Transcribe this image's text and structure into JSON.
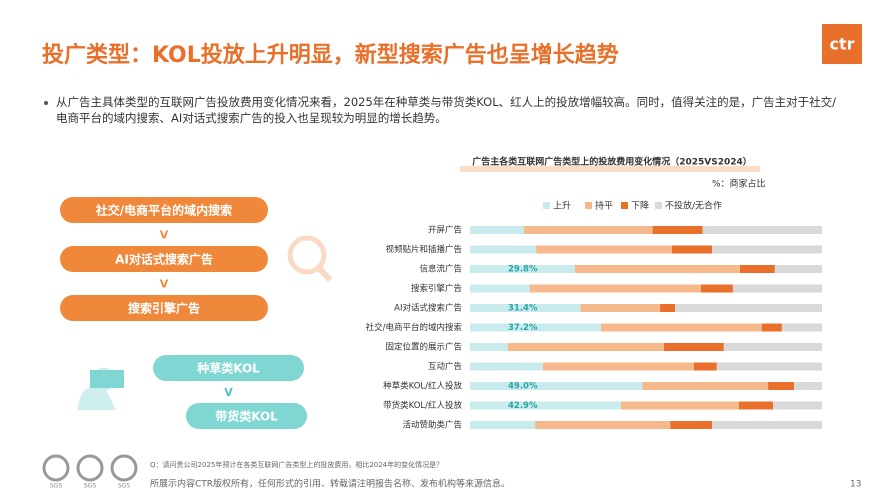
{
  "header": {
    "title": "投广类型：KOL投放上升明显，新型搜索广告也呈增长趋势"
  },
  "logo": "ctr",
  "bullet": "从广告主具体类型的互联网广告投放费用变化情况来看，2025年在种草类与带货类KOL、红人上的投放增幅较高。同时，值得关注的是，广告主对于社交/电商平台的域内搜索、AI对话式搜索广告的投入也呈现较为明显的增长趋势。",
  "pills": {
    "search": [
      "社交/电商平台的域内搜索",
      "V",
      "AI对话式搜索广告",
      "V",
      "搜索引擎广告"
    ],
    "kol": [
      "种草类KOL",
      "V",
      "带货类KOL"
    ]
  },
  "chart_data": {
    "type": "stacked-bar-horizontal",
    "title": "广告主各类互联网广告类型上的投放费用变化情况（2025VS2024）",
    "note": "%：商家占比",
    "categories": [
      "开屏广告",
      "视频贴片和插播广告",
      "信息流广告",
      "搜索引擎广告",
      "AI对话式搜索广告",
      "社交/电商平台的域内搜索",
      "固定位置的展示广告",
      "互动广告",
      "种草类KOL/红人投放",
      "带货类KOL/红人投放",
      "活动赞助类广告"
    ],
    "xlim": [
      0,
      100
    ],
    "series": [
      {
        "name": "上升",
        "color": "#c8ecee",
        "values": [
          15.3,
          18.8,
          29.8,
          17.0,
          31.4,
          37.2,
          10.8,
          20.7,
          49.0,
          42.9,
          18.5
        ],
        "value_labels": [
          null,
          null,
          "29.8%",
          null,
          "31.4%",
          "37.2%",
          null,
          null,
          "49.0%",
          "42.9%",
          null
        ]
      },
      {
        "name": "持平",
        "color": "#f6b98b",
        "values": [
          36.6,
          38.6,
          46.9,
          48.6,
          22.6,
          45.7,
          44.3,
          42.9,
          35.7,
          33.5,
          38.4
        ]
      },
      {
        "name": "下降",
        "color": "#e8702a",
        "values": [
          14.2,
          11.4,
          9.9,
          9.1,
          4.3,
          5.7,
          17.0,
          6.5,
          7.4,
          9.7,
          11.9
        ]
      },
      {
        "name": "不投放/无合作",
        "color": "#d9d9d9",
        "values": [
          33.9,
          31.2,
          13.4,
          25.3,
          41.7,
          11.4,
          27.9,
          29.9,
          7.9,
          13.9,
          31.2
        ]
      }
    ]
  },
  "footer": {
    "question": "Q：请问贵公司2025年预计在各类互联网广告类型上的投放费用，相比2024年的变化情况是？",
    "copyright": "所展示内容CTR版权所有，任何形式的引用、转载请注明报告名称、发布机构等来源信息。",
    "page": "13",
    "badges": [
      "SGS",
      "SGS",
      "SGS"
    ]
  }
}
